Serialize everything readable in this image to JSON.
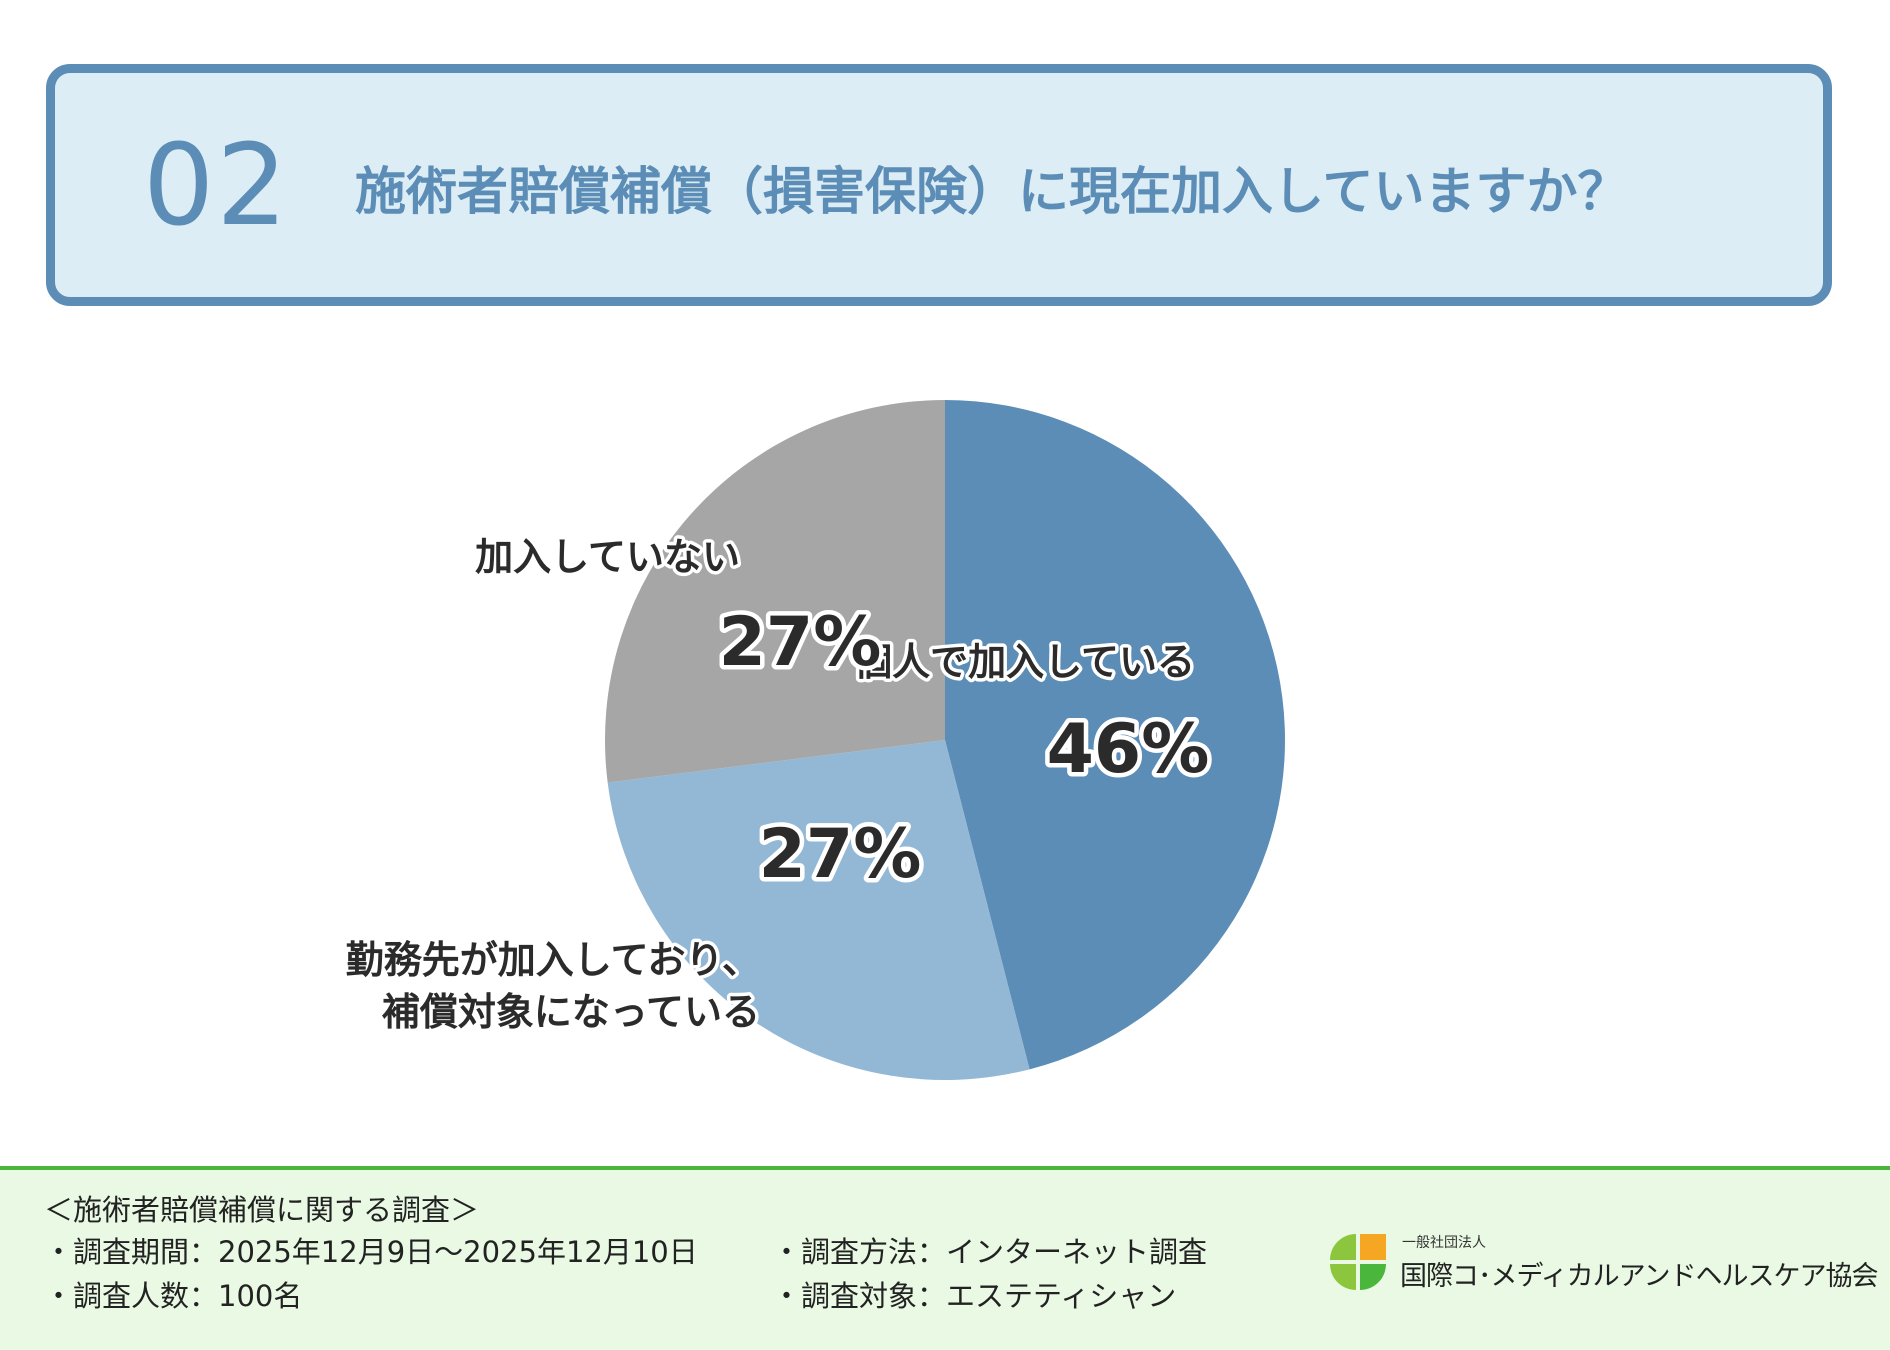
{
  "header": {
    "number": "02",
    "title": "施術者賠償補償（損害保険）に現在加入していますか？"
  },
  "chart_data": {
    "type": "pie",
    "slices": [
      {
        "label": "個人で加入している",
        "value": 46,
        "value_label": "46%",
        "color": "#5b8db6"
      },
      {
        "label": "勤務先が加入しており、\n補償対象になっている",
        "value": 27,
        "value_label": "27%",
        "color": "#93b8d6"
      },
      {
        "label": "加入していない",
        "value": 27,
        "value_label": "27%",
        "color": "#a6a6a6"
      }
    ],
    "start": "12 o'clock",
    "direction": "clockwise"
  },
  "footer": {
    "survey_title": "＜施術者賠償補償に関する調査＞",
    "period": "・調査期間：2025年12月9日〜2025年12月10日",
    "count": "・調査人数：100名",
    "method": "・調査方法：インターネット調査",
    "target": "・調査対象：エステティシャン",
    "logo_small": "一般社団法人",
    "logo_name": "国際コ･メディカルアンドヘルスケア協会",
    "logo_colors": [
      "#f5a623",
      "#8cc63f",
      "#8cc63f",
      "#4bb63c"
    ]
  }
}
